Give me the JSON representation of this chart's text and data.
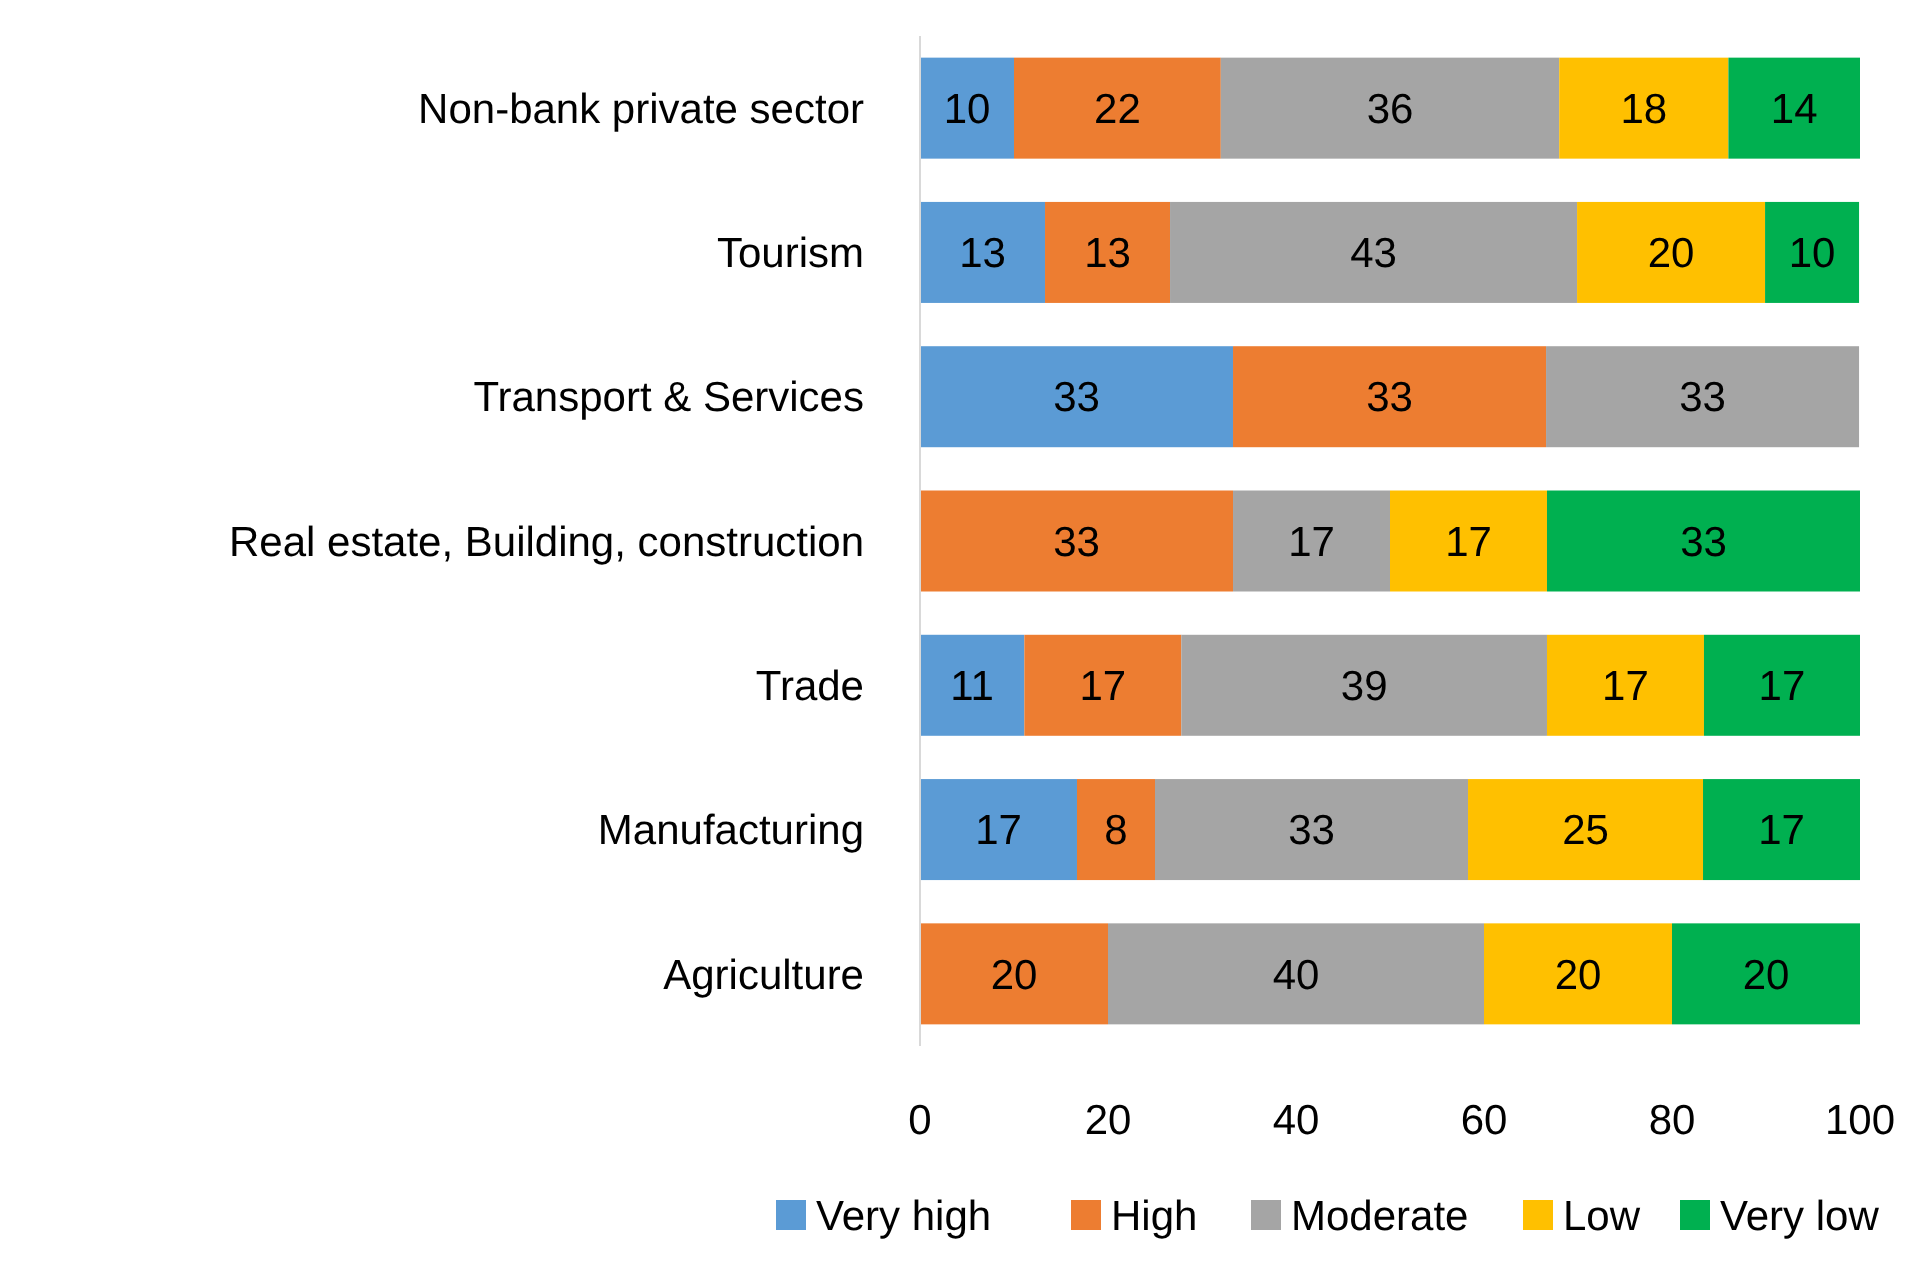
{
  "chart_data": {
    "type": "bar",
    "orientation": "horizontal",
    "stacked": true,
    "categories": [
      "Non-bank private sector",
      "Tourism",
      "Transport & Services",
      "Real estate, Building, construction",
      "Trade",
      "Manufacturing",
      "Agriculture"
    ],
    "series": [
      {
        "name": "Very high",
        "color": "#5b9bd5",
        "values": [
          10,
          13.3,
          33.3,
          null,
          11.1,
          16.7,
          null
        ],
        "value_labels": [
          "10",
          "13",
          "33",
          null,
          "11",
          "17",
          null
        ]
      },
      {
        "name": "High",
        "color": "#ed7d31",
        "values": [
          22,
          13.3,
          33.3,
          33.3,
          16.7,
          8.3,
          20
        ],
        "value_labels": [
          "22",
          "13",
          "33",
          "33",
          "17",
          "8",
          "20"
        ]
      },
      {
        "name": "Moderate",
        "color": "#a5a5a5",
        "values": [
          36,
          43.3,
          33.3,
          16.7,
          38.9,
          33.3,
          40
        ],
        "value_labels": [
          "36",
          "43",
          "33",
          "17",
          "39",
          "33",
          "40"
        ]
      },
      {
        "name": "Low",
        "color": "#ffc000",
        "values": [
          18,
          20,
          null,
          16.7,
          16.7,
          25,
          20
        ],
        "value_labels": [
          "18",
          "20",
          null,
          "17",
          "17",
          "25",
          "20"
        ]
      },
      {
        "name": "Very low",
        "color": "#00b050",
        "values": [
          14,
          10,
          null,
          33.3,
          16.6,
          16.7,
          20
        ],
        "value_labels": [
          "14",
          "10",
          null,
          "33",
          "17",
          "17",
          "20"
        ]
      }
    ],
    "xlim": [
      0,
      100
    ],
    "xticks": [
      0,
      20,
      40,
      60,
      80,
      100
    ],
    "grid": false,
    "legend": "bottom"
  }
}
